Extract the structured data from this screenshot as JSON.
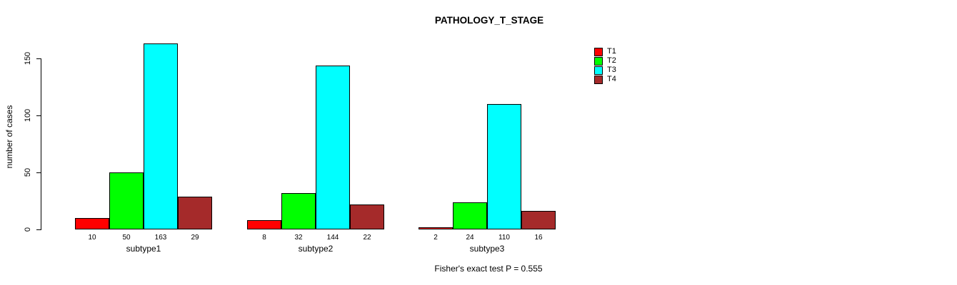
{
  "title": "PATHOLOGY_T_STAGE",
  "ylabel": "number of cases",
  "annotation": "Fisher's exact test P = 0.555",
  "colors": {
    "T1": "#ff0000",
    "T2": "#00ff00",
    "T3": "#00ffff",
    "T4": "#a52a2a",
    "axis": "#000000",
    "background": "#ffffff"
  },
  "legend": {
    "position": "right",
    "items": [
      "T1",
      "T2",
      "T3",
      "T4"
    ]
  },
  "chart_data": {
    "type": "bar",
    "title": "PATHOLOGY_T_STAGE",
    "xlabel": "",
    "ylabel": "number of cases",
    "categories": [
      "subtype1",
      "subtype2",
      "subtype3"
    ],
    "series": [
      {
        "name": "T1",
        "color": "#ff0000",
        "values": [
          10,
          8,
          2
        ]
      },
      {
        "name": "T2",
        "color": "#00ff00",
        "values": [
          50,
          32,
          24
        ]
      },
      {
        "name": "T3",
        "color": "#00ffff",
        "values": [
          163,
          144,
          110
        ]
      },
      {
        "name": "T4",
        "color": "#a52a2a",
        "values": [
          29,
          22,
          16
        ]
      }
    ],
    "bar_value_labels": [
      [
        "10",
        "50",
        "163",
        "29"
      ],
      [
        "8",
        "32",
        "144",
        "22"
      ],
      [
        "2",
        "24",
        "110",
        "16"
      ]
    ],
    "yticks": [
      0,
      50,
      100,
      150
    ],
    "ylim": [
      0,
      170
    ],
    "grid": false,
    "legend_position": "right",
    "annotation": "Fisher's exact test P = 0.555"
  }
}
